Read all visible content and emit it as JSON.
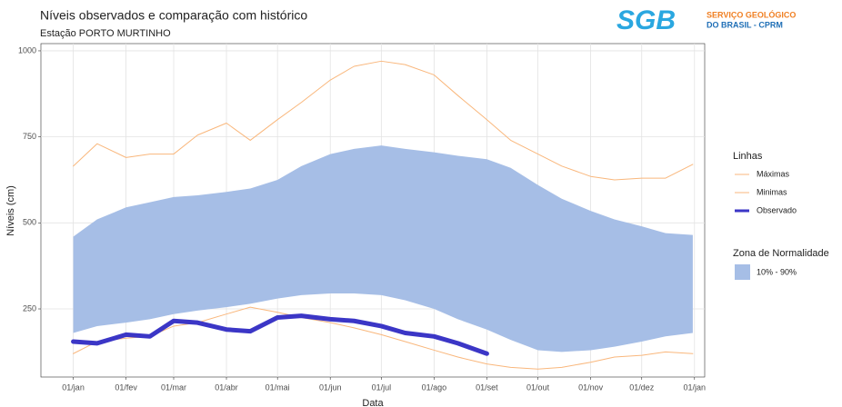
{
  "chart_data": {
    "type": "line",
    "title": "Níveis observados e comparação com histórico",
    "subtitle": "Estação PORTO MURTINHO",
    "logo_mark": "SGB",
    "logo_line_1": "SERVIÇO GEOLÓGICO",
    "logo_line_2": "DO BRASIL - CPRM",
    "x_label": "Data",
    "y_label": "Níveis (cm)",
    "x": [
      1,
      15,
      32,
      46,
      60,
      74,
      91,
      105,
      121,
      135,
      152,
      166,
      182,
      196,
      213,
      227,
      244,
      258,
      274,
      288,
      305,
      319,
      335,
      349,
      365
    ],
    "xlim": [
      -18,
      372
    ],
    "xticks": [
      {
        "value": 1,
        "label": "01/jan"
      },
      {
        "value": 32,
        "label": "01/fev"
      },
      {
        "value": 60,
        "label": "01/mar"
      },
      {
        "value": 91,
        "label": "01/abr"
      },
      {
        "value": 121,
        "label": "01/mai"
      },
      {
        "value": 152,
        "label": "01/jun"
      },
      {
        "value": 182,
        "label": "01/jul"
      },
      {
        "value": 213,
        "label": "01/ago"
      },
      {
        "value": 244,
        "label": "01/set"
      },
      {
        "value": 274,
        "label": "01/out"
      },
      {
        "value": 305,
        "label": "01/nov"
      },
      {
        "value": 335,
        "label": "01/dez"
      },
      {
        "value": 366,
        "label": "01/jan"
      }
    ],
    "ylim": [
      52,
      1021
    ],
    "yticks": [
      250,
      500,
      750,
      1000
    ],
    "grid": true,
    "band": {
      "legend_title": "Zona de Normalidade",
      "name": "10% - 90%",
      "color": "#a6bee6",
      "upper": [
        460,
        510,
        545,
        560,
        575,
        580,
        590,
        600,
        625,
        665,
        700,
        715,
        725,
        715,
        705,
        695,
        685,
        660,
        610,
        570,
        535,
        510,
        490,
        470,
        465
      ],
      "lower": [
        180,
        200,
        210,
        220,
        235,
        245,
        255,
        265,
        280,
        290,
        295,
        295,
        290,
        275,
        250,
        220,
        190,
        160,
        130,
        125,
        130,
        140,
        155,
        170,
        180
      ]
    },
    "lines_legend_title": "Linhas",
    "series": [
      {
        "name": "Máximas",
        "color": "#f9b77c",
        "width": 1,
        "values": [
          665,
          730,
          690,
          700,
          700,
          755,
          790,
          740,
          800,
          850,
          915,
          955,
          970,
          960,
          930,
          870,
          800,
          740,
          700,
          665,
          635,
          625,
          630,
          630,
          670
        ]
      },
      {
        "name": "Minimas",
        "color": "#f9b77c",
        "width": 1,
        "values": [
          120,
          155,
          165,
          170,
          200,
          210,
          235,
          255,
          240,
          225,
          210,
          195,
          175,
          155,
          130,
          110,
          90,
          80,
          75,
          80,
          95,
          110,
          115,
          125,
          120
        ]
      },
      {
        "name": "Observado",
        "color": "#3b36c6",
        "width": 5,
        "values": [
          155,
          150,
          175,
          170,
          215,
          210,
          190,
          185,
          225,
          230,
          220,
          215,
          200,
          180,
          170,
          150,
          120,
          null,
          null,
          null,
          null,
          null,
          null,
          null,
          null
        ]
      }
    ]
  }
}
